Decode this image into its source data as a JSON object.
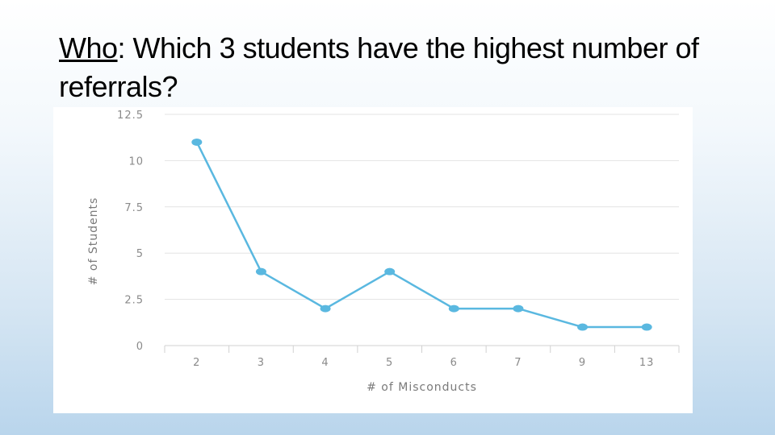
{
  "slide": {
    "title_lead": "Who",
    "title_colon": ":",
    "title_rest": "  Which 3 students have the highest number of referrals?"
  },
  "colors": {
    "line": "#5ab8e0",
    "grid": "#e3e3e3",
    "tick_text": "#8a8a8a"
  },
  "chart_data": {
    "type": "line",
    "categories": [
      "2",
      "3",
      "4",
      "5",
      "6",
      "7",
      "9",
      "13"
    ],
    "series": [
      {
        "values": [
          11,
          4,
          2,
          4,
          2,
          2,
          1,
          1
        ]
      }
    ],
    "xlabel": "# of Misconducts",
    "ylabel": "# of Students",
    "ylim": [
      0,
      12.5
    ],
    "yticks": [
      "0",
      "2.5",
      "5",
      "7.5",
      "10",
      "12.5"
    ],
    "grid": true,
    "legend": "none"
  }
}
